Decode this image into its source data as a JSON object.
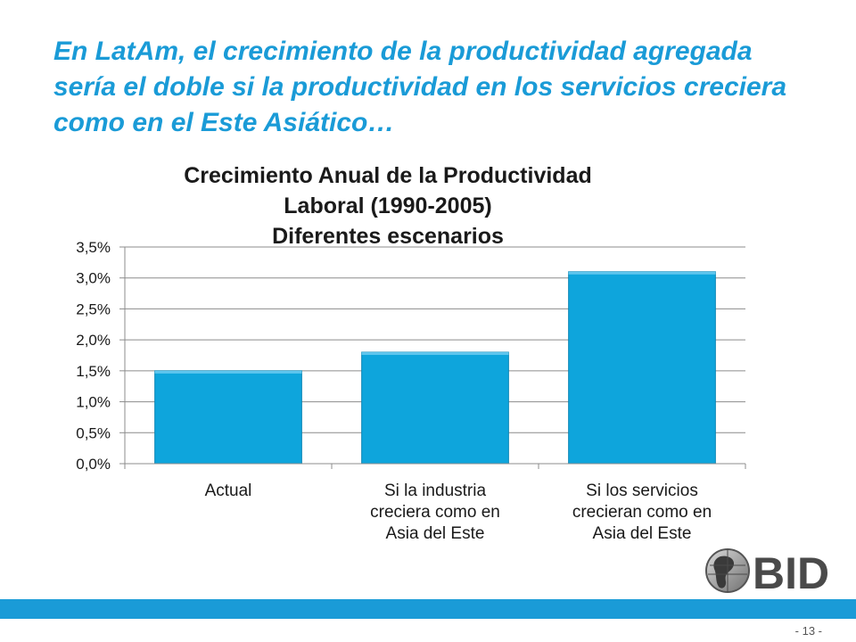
{
  "slide": {
    "title": "En LatAm, el crecimiento de la productividad agregada sería el doble si la productividad en los servicios creciera como en el Este Asiático…",
    "page_number": "- 13 -",
    "logo_text": "BID"
  },
  "colors": {
    "accent": "#1a9bd7",
    "bar": "#0ea5dc",
    "grid": "#8c8c8c"
  },
  "chart_data": {
    "type": "bar",
    "title_lines": [
      "Crecimiento Anual de la Productividad",
      "Laboral (1990-2005)",
      "Diferentes escenarios"
    ],
    "categories": [
      [
        "Actual"
      ],
      [
        "Si la industria",
        "creciera como en",
        "Asia del Este"
      ],
      [
        "Si los servicios",
        "crecieran como en",
        "Asia del Este"
      ]
    ],
    "values": [
      1.5,
      1.8,
      3.1
    ],
    "ylim": [
      0,
      3.5
    ],
    "yticks": [
      "0,0%",
      "0,5%",
      "1,0%",
      "1,5%",
      "2,0%",
      "2,5%",
      "3,0%",
      "3,5%"
    ],
    "grid": true,
    "legend": "none"
  }
}
